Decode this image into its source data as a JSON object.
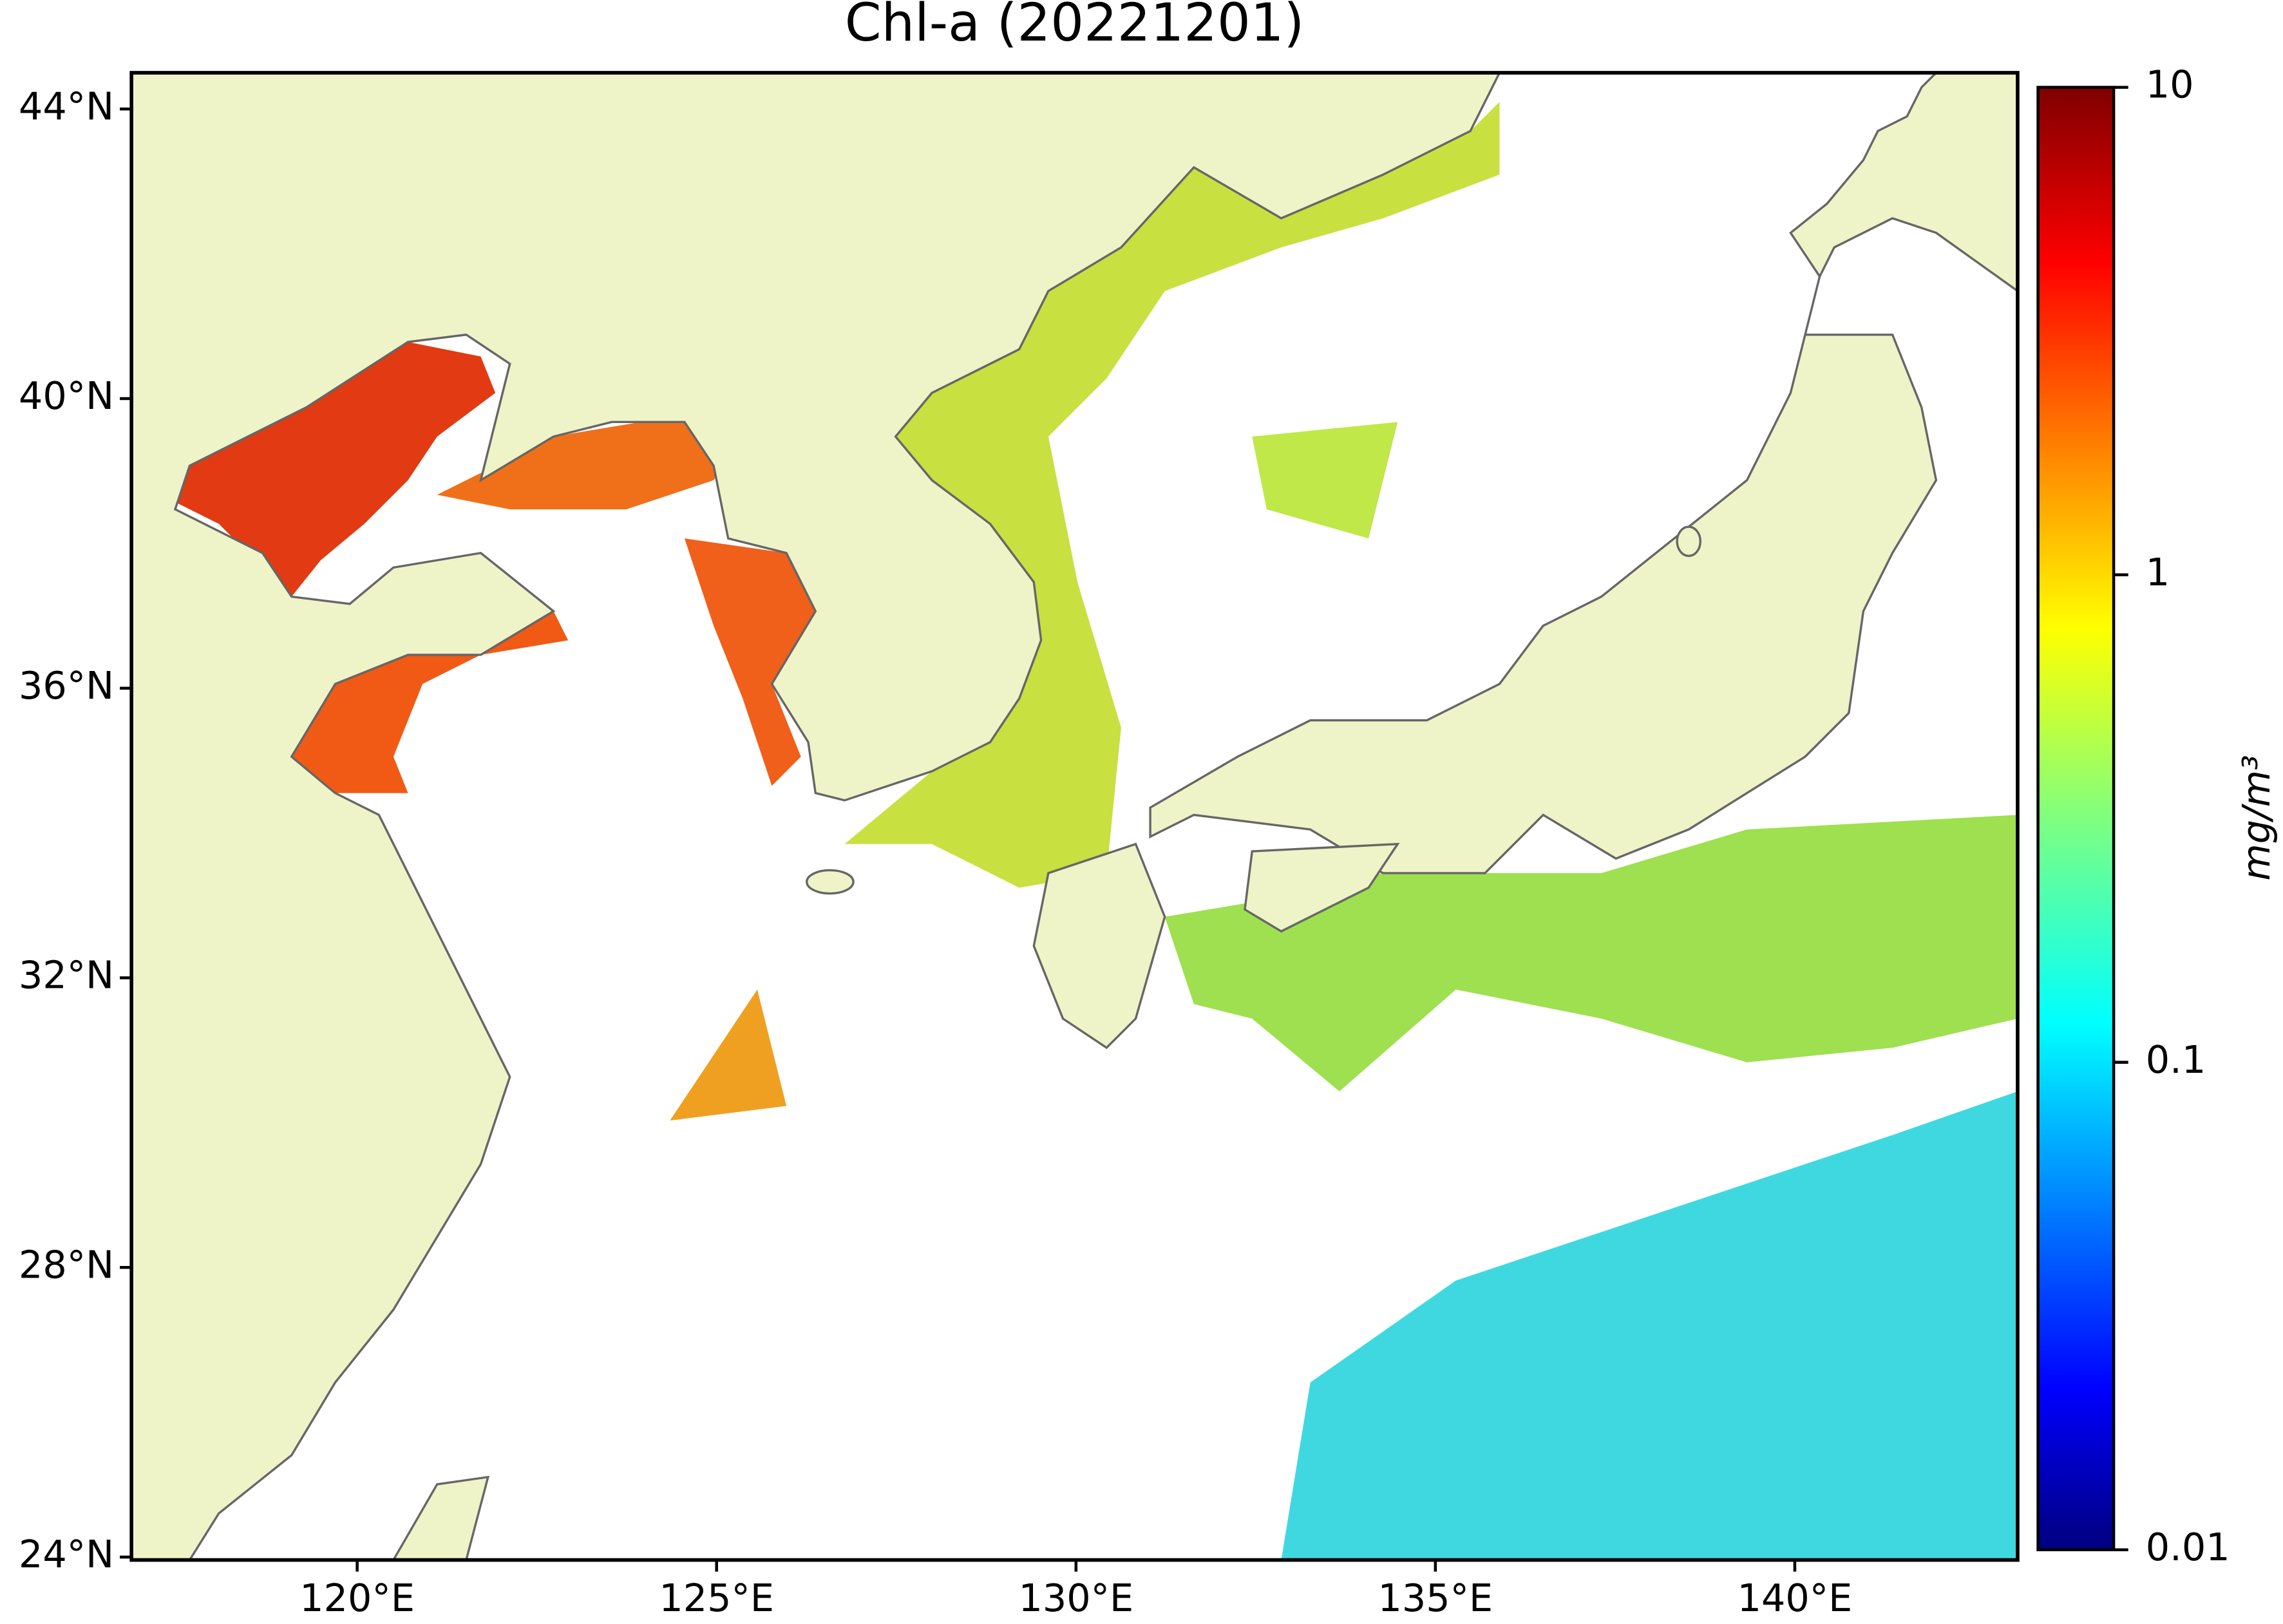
{
  "chart_data": {
    "type": "map",
    "title": "Chl-a (20221201)",
    "xlim": [
      116.86,
      143.1
    ],
    "ylim": [
      23.96,
      44.5
    ],
    "xticks": [
      {
        "value": 120,
        "label": "120°E"
      },
      {
        "value": 125,
        "label": "125°E"
      },
      {
        "value": 130,
        "label": "130°E"
      },
      {
        "value": 135,
        "label": "135°E"
      },
      {
        "value": 140,
        "label": "140°E"
      }
    ],
    "yticks": [
      {
        "value": 24,
        "label": "24°N"
      },
      {
        "value": 28,
        "label": "28°N"
      },
      {
        "value": 32,
        "label": "32°N"
      },
      {
        "value": 36,
        "label": "36°N"
      },
      {
        "value": 40,
        "label": "40°N"
      },
      {
        "value": 44,
        "label": "44°N"
      }
    ],
    "colorbar": {
      "label": "mg/m³",
      "scale": "log",
      "lim": [
        0.01,
        10
      ],
      "ticks": [
        0.01,
        0.1,
        1,
        10
      ]
    }
  }
}
